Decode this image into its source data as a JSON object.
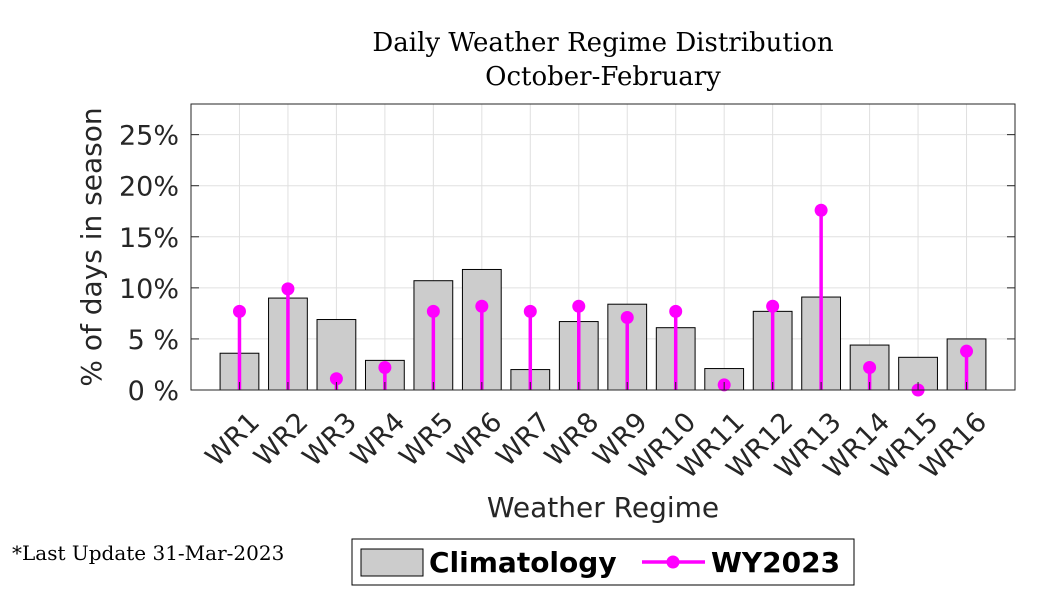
{
  "chart_data": {
    "type": "bar",
    "title": [
      "Daily Weather Regime Distribution",
      "October-February"
    ],
    "xlabel": "Weather Regime",
    "ylabel": "% of days in season",
    "ylim": [
      0,
      28
    ],
    "yticks": [
      0,
      5,
      10,
      15,
      20,
      25
    ],
    "ytick_labels": [
      "0 %",
      "5 %",
      "10%",
      "15%",
      "20%",
      "25%"
    ],
    "grid": true,
    "categories": [
      "WR1",
      "WR2",
      "WR3",
      "WR4",
      "WR5",
      "WR6",
      "WR7",
      "WR8",
      "WR9",
      "WR10",
      "WR11",
      "WR12",
      "WR13",
      "WR14",
      "WR15",
      "WR16"
    ],
    "series": [
      {
        "name": "Climatology",
        "kind": "bar",
        "color": "#cccccc",
        "values": [
          3.6,
          9.0,
          6.9,
          2.9,
          10.7,
          11.8,
          2.0,
          6.7,
          8.4,
          6.1,
          2.1,
          7.7,
          9.1,
          4.4,
          3.2,
          5.0
        ]
      },
      {
        "name": "WY2023",
        "kind": "stem",
        "color": "#ff00ff",
        "values": [
          7.7,
          9.9,
          1.1,
          2.2,
          7.7,
          8.2,
          7.7,
          8.2,
          7.1,
          7.7,
          0.5,
          8.2,
          17.6,
          2.2,
          0.0,
          3.8
        ]
      }
    ],
    "legend": [
      "Climatology",
      "WY2023"
    ],
    "legend_position": "bottom"
  },
  "note": "*Last Update 31-Mar-2023"
}
